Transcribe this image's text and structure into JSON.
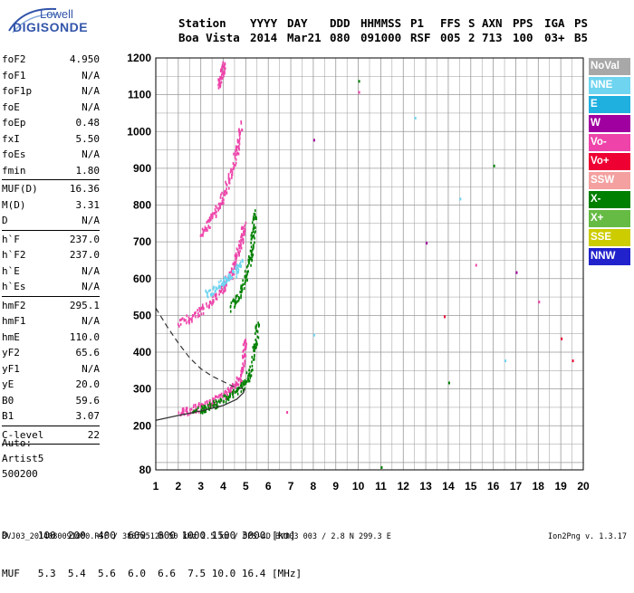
{
  "logo": {
    "line1": "Lowell",
    "line2": "DIGISONDE"
  },
  "header": {
    "row1": [
      "Station",
      "YYYY",
      "DAY",
      "DDD",
      "HHMMSS",
      "P1",
      "FFS",
      "S",
      "AXN",
      "PPS",
      "IGA",
      "PS"
    ],
    "row2": [
      "Boa Vista",
      "2014",
      "Mar21",
      "080",
      "091000",
      "RSF",
      "005",
      "2",
      "713",
      "100",
      "03+",
      "B5"
    ]
  },
  "params": {
    "group1": [
      {
        "name": "foF2",
        "value": "4.950"
      },
      {
        "name": "foF1",
        "value": "N/A"
      },
      {
        "name": "foF1p",
        "value": "N/A"
      },
      {
        "name": "foE",
        "value": "N/A"
      },
      {
        "name": "foEp",
        "value": "0.48"
      },
      {
        "name": "fxI",
        "value": "5.50"
      },
      {
        "name": "foEs",
        "value": "N/A"
      },
      {
        "name": "fmin",
        "value": "1.80"
      }
    ],
    "group2": [
      {
        "name": "MUF(D)",
        "value": "16.36"
      },
      {
        "name": "M(D)",
        "value": "3.31"
      },
      {
        "name": "D",
        "value": "N/A"
      }
    ],
    "group3": [
      {
        "name": "h`F",
        "value": "237.0"
      },
      {
        "name": "h`F2",
        "value": "237.0"
      },
      {
        "name": "h`E",
        "value": "N/A"
      },
      {
        "name": "h`Es",
        "value": "N/A"
      }
    ],
    "group4": [
      {
        "name": "hmF2",
        "value": "295.1"
      },
      {
        "name": "hmF1",
        "value": "N/A"
      },
      {
        "name": "hmE",
        "value": "110.0"
      },
      {
        "name": "yF2",
        "value": "65.6"
      },
      {
        "name": "yF1",
        "value": "N/A"
      },
      {
        "name": "yE",
        "value": "20.0"
      },
      {
        "name": "B0",
        "value": "59.6"
      },
      {
        "name": "B1",
        "value": "3.07"
      }
    ],
    "group5": [
      {
        "name": "C-level",
        "value": "22"
      }
    ]
  },
  "auto": {
    "line1": "Auto:",
    "line2": "Artist5",
    "line3": "500200"
  },
  "dmuf": {
    "d_label": "D",
    "d_values": [
      "100",
      "200",
      "400",
      "600",
      "800",
      "1000",
      "1500",
      "3000"
    ],
    "d_unit": "[km]",
    "muf_label": "MUF",
    "muf_values": [
      "5.3",
      "5.4",
      "5.6",
      "6.0",
      "6.6",
      "7.5",
      "10.0",
      "16.4"
    ],
    "muf_unit": "[MHz]"
  },
  "footer": {
    "left": "BVJ03_2014080091000.RSF / 380fx512h 50 kHz 2.5 km / DPS-4D BVJ03 003 / 2.8 N 299.3 E",
    "right": "Ion2Png v. 1.3.17"
  },
  "legend": [
    {
      "label": "NoVal",
      "color": "#a8a8a8"
    },
    {
      "label": "NNE",
      "color": "#6fd4f0"
    },
    {
      "label": "E",
      "color": "#1fb0e0"
    },
    {
      "label": "W",
      "color": "#a000a0"
    },
    {
      "label": "Vo-",
      "color": "#ee44aa"
    },
    {
      "label": "Vo+",
      "color": "#ee0033"
    },
    {
      "label": "SSW",
      "color": "#f4a0a0"
    },
    {
      "label": "X-",
      "color": "#008000"
    },
    {
      "label": "X+",
      "color": "#66bb44"
    },
    {
      "label": "SSE",
      "color": "#cccc00"
    },
    {
      "label": "NNW",
      "color": "#2222cc"
    }
  ],
  "chart_data": {
    "type": "scatter",
    "x_ticks": [
      "1",
      "2",
      "3",
      "4",
      "5",
      "6",
      "7",
      "8",
      "9",
      "10",
      "11",
      "12",
      "13",
      "14",
      "15",
      "16",
      "17",
      "18",
      "19",
      "20"
    ],
    "y_ticks": [
      "80",
      "200",
      "300",
      "400",
      "500",
      "600",
      "700",
      "800",
      "900",
      "1000",
      "1100",
      "1200"
    ],
    "xlim": [
      1,
      20
    ],
    "ylim": [
      80,
      1200
    ],
    "grid": true,
    "legend_position": "right",
    "traces": [
      {
        "id": "F2-O",
        "color": "#ee44aa",
        "points": [
          [
            2.0,
            237
          ],
          [
            2.5,
            245
          ],
          [
            3.0,
            255
          ],
          [
            3.5,
            268
          ],
          [
            4.0,
            285
          ],
          [
            4.4,
            305
          ],
          [
            4.7,
            330
          ],
          [
            4.9,
            380
          ],
          [
            4.95,
            440
          ]
        ]
      },
      {
        "id": "F2-X",
        "color": "#008000",
        "points": [
          [
            2.6,
            240
          ],
          [
            3.2,
            252
          ],
          [
            3.8,
            268
          ],
          [
            4.4,
            290
          ],
          [
            4.9,
            315
          ],
          [
            5.2,
            350
          ],
          [
            5.4,
            420
          ],
          [
            5.5,
            480
          ]
        ]
      },
      {
        "id": "2F2-O",
        "color": "#ee44aa",
        "points": [
          [
            2.0,
            480
          ],
          [
            2.6,
            500
          ],
          [
            3.2,
            525
          ],
          [
            3.7,
            555
          ],
          [
            4.1,
            590
          ],
          [
            4.4,
            625
          ],
          [
            4.6,
            665
          ],
          [
            4.8,
            710
          ],
          [
            4.9,
            750
          ]
        ]
      },
      {
        "id": "2F2-X",
        "color": "#008000",
        "points": [
          [
            4.3,
            520
          ],
          [
            4.7,
            560
          ],
          [
            5.0,
            610
          ],
          [
            5.2,
            660
          ],
          [
            5.3,
            720
          ],
          [
            5.4,
            790
          ]
        ]
      },
      {
        "id": "2F2-NNE",
        "color": "#6fd4f0",
        "points": [
          [
            3.2,
            560
          ],
          [
            3.7,
            580
          ],
          [
            4.1,
            600
          ],
          [
            4.5,
            620
          ],
          [
            4.8,
            650
          ]
        ]
      },
      {
        "id": "3F2-O",
        "color": "#ee44aa",
        "points": [
          [
            3.0,
            720
          ],
          [
            3.4,
            760
          ],
          [
            3.8,
            800
          ],
          [
            4.1,
            850
          ],
          [
            4.4,
            900
          ],
          [
            4.6,
            960
          ],
          [
            4.8,
            1040
          ]
        ]
      },
      {
        "id": "4F2-O",
        "color": "#ee44aa",
        "points": [
          [
            3.8,
            1130
          ],
          [
            3.9,
            1160
          ],
          [
            4.0,
            1185
          ]
        ]
      }
    ],
    "profile_solid": [
      [
        1.0,
        215
      ],
      [
        2.0,
        228
      ],
      [
        3.0,
        240
      ],
      [
        4.0,
        255
      ],
      [
        4.6,
        272
      ],
      [
        4.9,
        290
      ],
      [
        4.95,
        300
      ]
    ],
    "profile_dashed": [
      [
        1.0,
        520
      ],
      [
        1.5,
        470
      ],
      [
        2.0,
        425
      ],
      [
        2.5,
        385
      ],
      [
        3.0,
        355
      ],
      [
        3.5,
        335
      ],
      [
        4.0,
        320
      ],
      [
        4.5,
        305
      ],
      [
        4.95,
        300
      ]
    ],
    "scattered_spots": [
      [
        10.0,
        1140
      ],
      [
        10.0,
        1110
      ],
      [
        12.5,
        1040
      ],
      [
        13.0,
        700
      ],
      [
        13.8,
        500
      ],
      [
        14.0,
        320
      ],
      [
        15.2,
        640
      ],
      [
        16.5,
        380
      ],
      [
        17.0,
        620
      ],
      [
        19.0,
        440
      ],
      [
        11.0,
        90
      ],
      [
        6.8,
        240
      ],
      [
        8.0,
        450
      ],
      [
        8.0,
        980
      ],
      [
        19.5,
        380
      ],
      [
        16.0,
        910
      ],
      [
        18.0,
        540
      ],
      [
        14.5,
        820
      ]
    ]
  }
}
